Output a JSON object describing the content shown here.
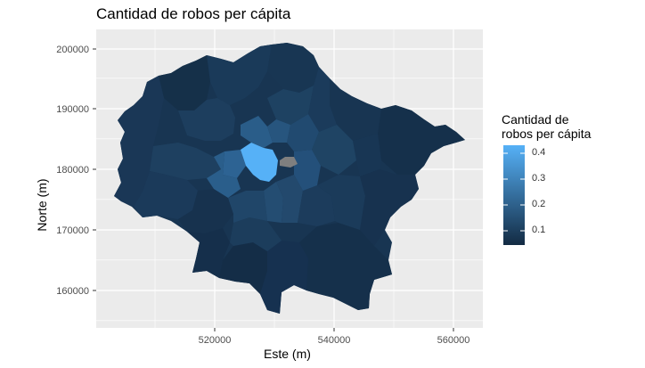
{
  "chart_data": {
    "type": "map",
    "title": "Cantidad de robos per cápita",
    "xlabel": "Este (m)",
    "ylabel": "Norte (m)",
    "x_ticks": [
      520000,
      540000,
      560000
    ],
    "y_ticks": [
      160000,
      170000,
      180000,
      190000,
      200000
    ],
    "xlim": [
      501000,
      566000
    ],
    "ylim": [
      154500,
      205000
    ],
    "legend": {
      "title_line1": "Cantidad de",
      "title_line2": "robos per cápita",
      "ticks": [
        0.4,
        0.3,
        0.2,
        0.1
      ],
      "range": [
        0.03,
        0.45
      ],
      "position": "right"
    },
    "grid": true,
    "colors": {
      "low": "#132B43",
      "high": "#56B1F7",
      "na": "#7f7f7f",
      "panel": "#ebebeb",
      "grid": "#ffffff"
    }
  }
}
